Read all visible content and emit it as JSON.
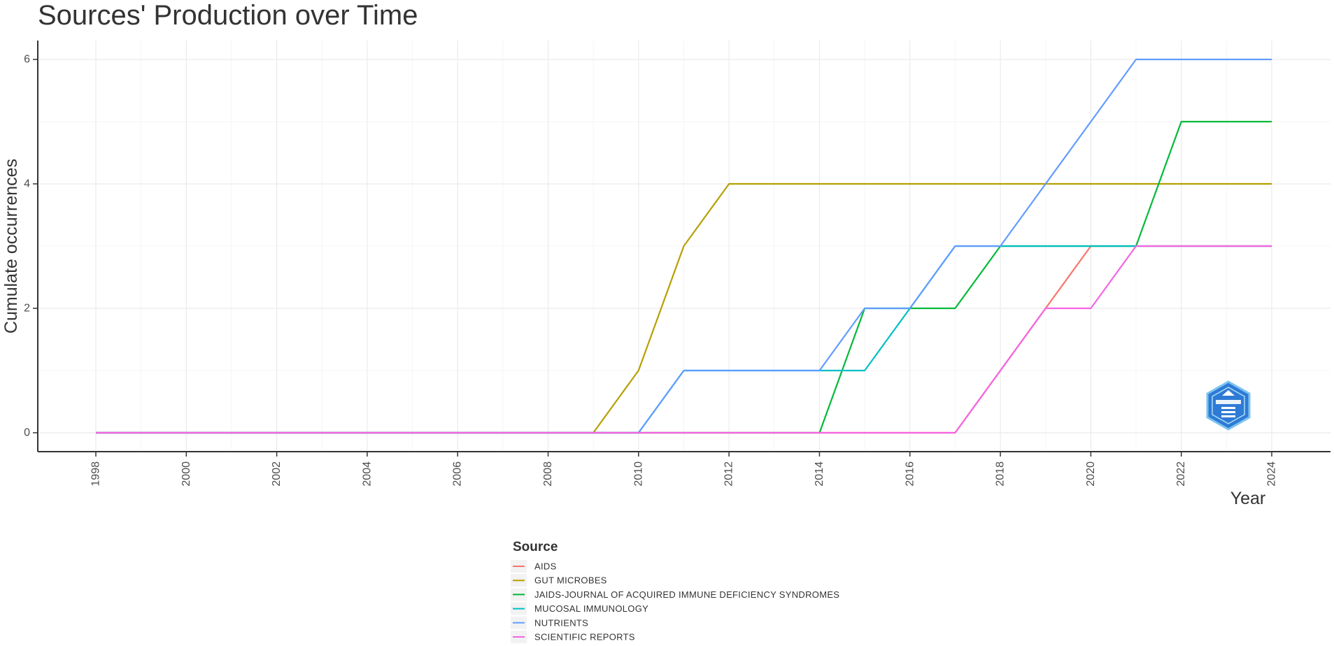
{
  "chart_data": {
    "type": "line",
    "title": "Sources' Production over Time",
    "xlabel": "Year",
    "ylabel": "Cumulate occurrences",
    "xlim": [
      1998,
      2024
    ],
    "ylim": [
      0,
      6
    ],
    "x_ticks": [
      1998,
      2000,
      2002,
      2004,
      2006,
      2008,
      2010,
      2012,
      2014,
      2016,
      2018,
      2020,
      2022,
      2024
    ],
    "y_ticks": [
      0,
      2,
      4,
      6
    ],
    "grid": true,
    "legend": {
      "title": "Source",
      "placement": "bottom"
    },
    "x": [
      1998,
      1999,
      2000,
      2001,
      2002,
      2003,
      2004,
      2005,
      2006,
      2007,
      2008,
      2009,
      2010,
      2011,
      2012,
      2013,
      2014,
      2015,
      2016,
      2017,
      2018,
      2019,
      2020,
      2021,
      2022,
      2023,
      2024
    ],
    "series": [
      {
        "name": "AIDS",
        "color": "#f8766d",
        "values": [
          0,
          0,
          0,
          0,
          0,
          0,
          0,
          0,
          0,
          0,
          0,
          0,
          0,
          0,
          0,
          0,
          0,
          0,
          0,
          0,
          1,
          2,
          3,
          3,
          3,
          3,
          3
        ]
      },
      {
        "name": "GUT MICROBES",
        "color": "#b79f00",
        "values": [
          0,
          0,
          0,
          0,
          0,
          0,
          0,
          0,
          0,
          0,
          0,
          0,
          1,
          3,
          4,
          4,
          4,
          4,
          4,
          4,
          4,
          4,
          4,
          4,
          4,
          4,
          4
        ]
      },
      {
        "name": "JAIDS-JOURNAL OF ACQUIRED IMMUNE DEFICIENCY SYNDROMES",
        "color": "#00ba38",
        "values": [
          0,
          0,
          0,
          0,
          0,
          0,
          0,
          0,
          0,
          0,
          0,
          0,
          0,
          0,
          0,
          0,
          0,
          2,
          2,
          2,
          3,
          3,
          3,
          3,
          5,
          5,
          5
        ]
      },
      {
        "name": "MUCOSAL IMMUNOLOGY",
        "color": "#00bfc4",
        "values": [
          0,
          0,
          0,
          0,
          0,
          0,
          0,
          0,
          0,
          0,
          0,
          0,
          0,
          1,
          1,
          1,
          1,
          1,
          2,
          3,
          3,
          3,
          3,
          3,
          3,
          3,
          3
        ]
      },
      {
        "name": "NUTRIENTS",
        "color": "#619cff",
        "values": [
          0,
          0,
          0,
          0,
          0,
          0,
          0,
          0,
          0,
          0,
          0,
          0,
          0,
          1,
          1,
          1,
          1,
          2,
          2,
          3,
          3,
          4,
          5,
          6,
          6,
          6,
          6
        ]
      },
      {
        "name": "SCIENTIFIC REPORTS",
        "color": "#f564e3",
        "values": [
          0,
          0,
          0,
          0,
          0,
          0,
          0,
          0,
          0,
          0,
          0,
          0,
          0,
          0,
          0,
          0,
          0,
          0,
          0,
          0,
          1,
          2,
          2,
          3,
          3,
          3,
          3
        ]
      }
    ]
  }
}
